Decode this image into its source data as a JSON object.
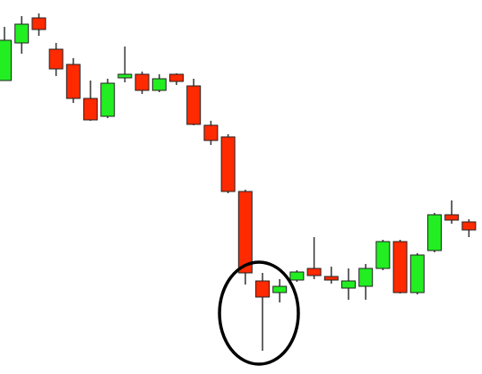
{
  "chart_data": {
    "type": "candlestick",
    "ylim": [
      0,
      418
    ],
    "colors": {
      "up": "#22ee22",
      "down": "#ff2a00"
    },
    "open": [
      328,
      370,
      398,
      363,
      346,
      308,
      288,
      331,
      335,
      317,
      335,
      322,
      278,
      265,
      204,
      104,
      91,
      105,
      118,
      109,
      96,
      98,
      118,
      148,
      91,
      138,
      178,
      170
    ],
    "high": [
      388,
      400,
      403,
      370,
      353,
      328,
      330,
      366,
      338,
      335,
      336,
      330,
      283,
      268,
      206,
      113,
      106,
      116,
      153,
      120,
      118,
      123,
      150,
      150,
      135,
      180,
      194,
      173
    ],
    "low": [
      328,
      358,
      378,
      333,
      303,
      283,
      286,
      326,
      313,
      315,
      323,
      278,
      256,
      202,
      100,
      26,
      80,
      103,
      106,
      101,
      83,
      83,
      116,
      90,
      89,
      136,
      168,
      153
    ],
    "close": [
      373,
      391,
      385,
      341,
      308,
      284,
      325,
      335,
      317,
      330,
      327,
      279,
      261,
      204,
      113,
      86,
      98,
      114,
      110,
      105,
      104,
      118,
      148,
      91,
      133,
      178,
      172,
      161
    ]
  }
}
